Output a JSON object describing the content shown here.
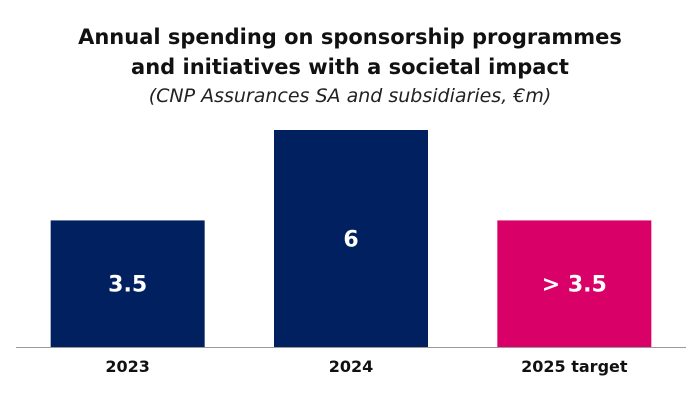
{
  "chart_data": {
    "type": "bar",
    "title_lines": [
      "Annual spending on sponsorship programmes",
      "and initiatives with a societal impact"
    ],
    "subtitle": "(CNP Assurances SA and subsidiaries, €m)",
    "xlabel": "",
    "ylabel": "",
    "categories": [
      "2023",
      "2024",
      "2025 target"
    ],
    "values": [
      3.5,
      6,
      3.5
    ],
    "data_labels": [
      "3.5",
      "6",
      "> 3.5"
    ],
    "colors": [
      "#002060",
      "#002060",
      "#D90068"
    ],
    "ylim": [
      0,
      6
    ],
    "grid": false,
    "legend": "none"
  }
}
